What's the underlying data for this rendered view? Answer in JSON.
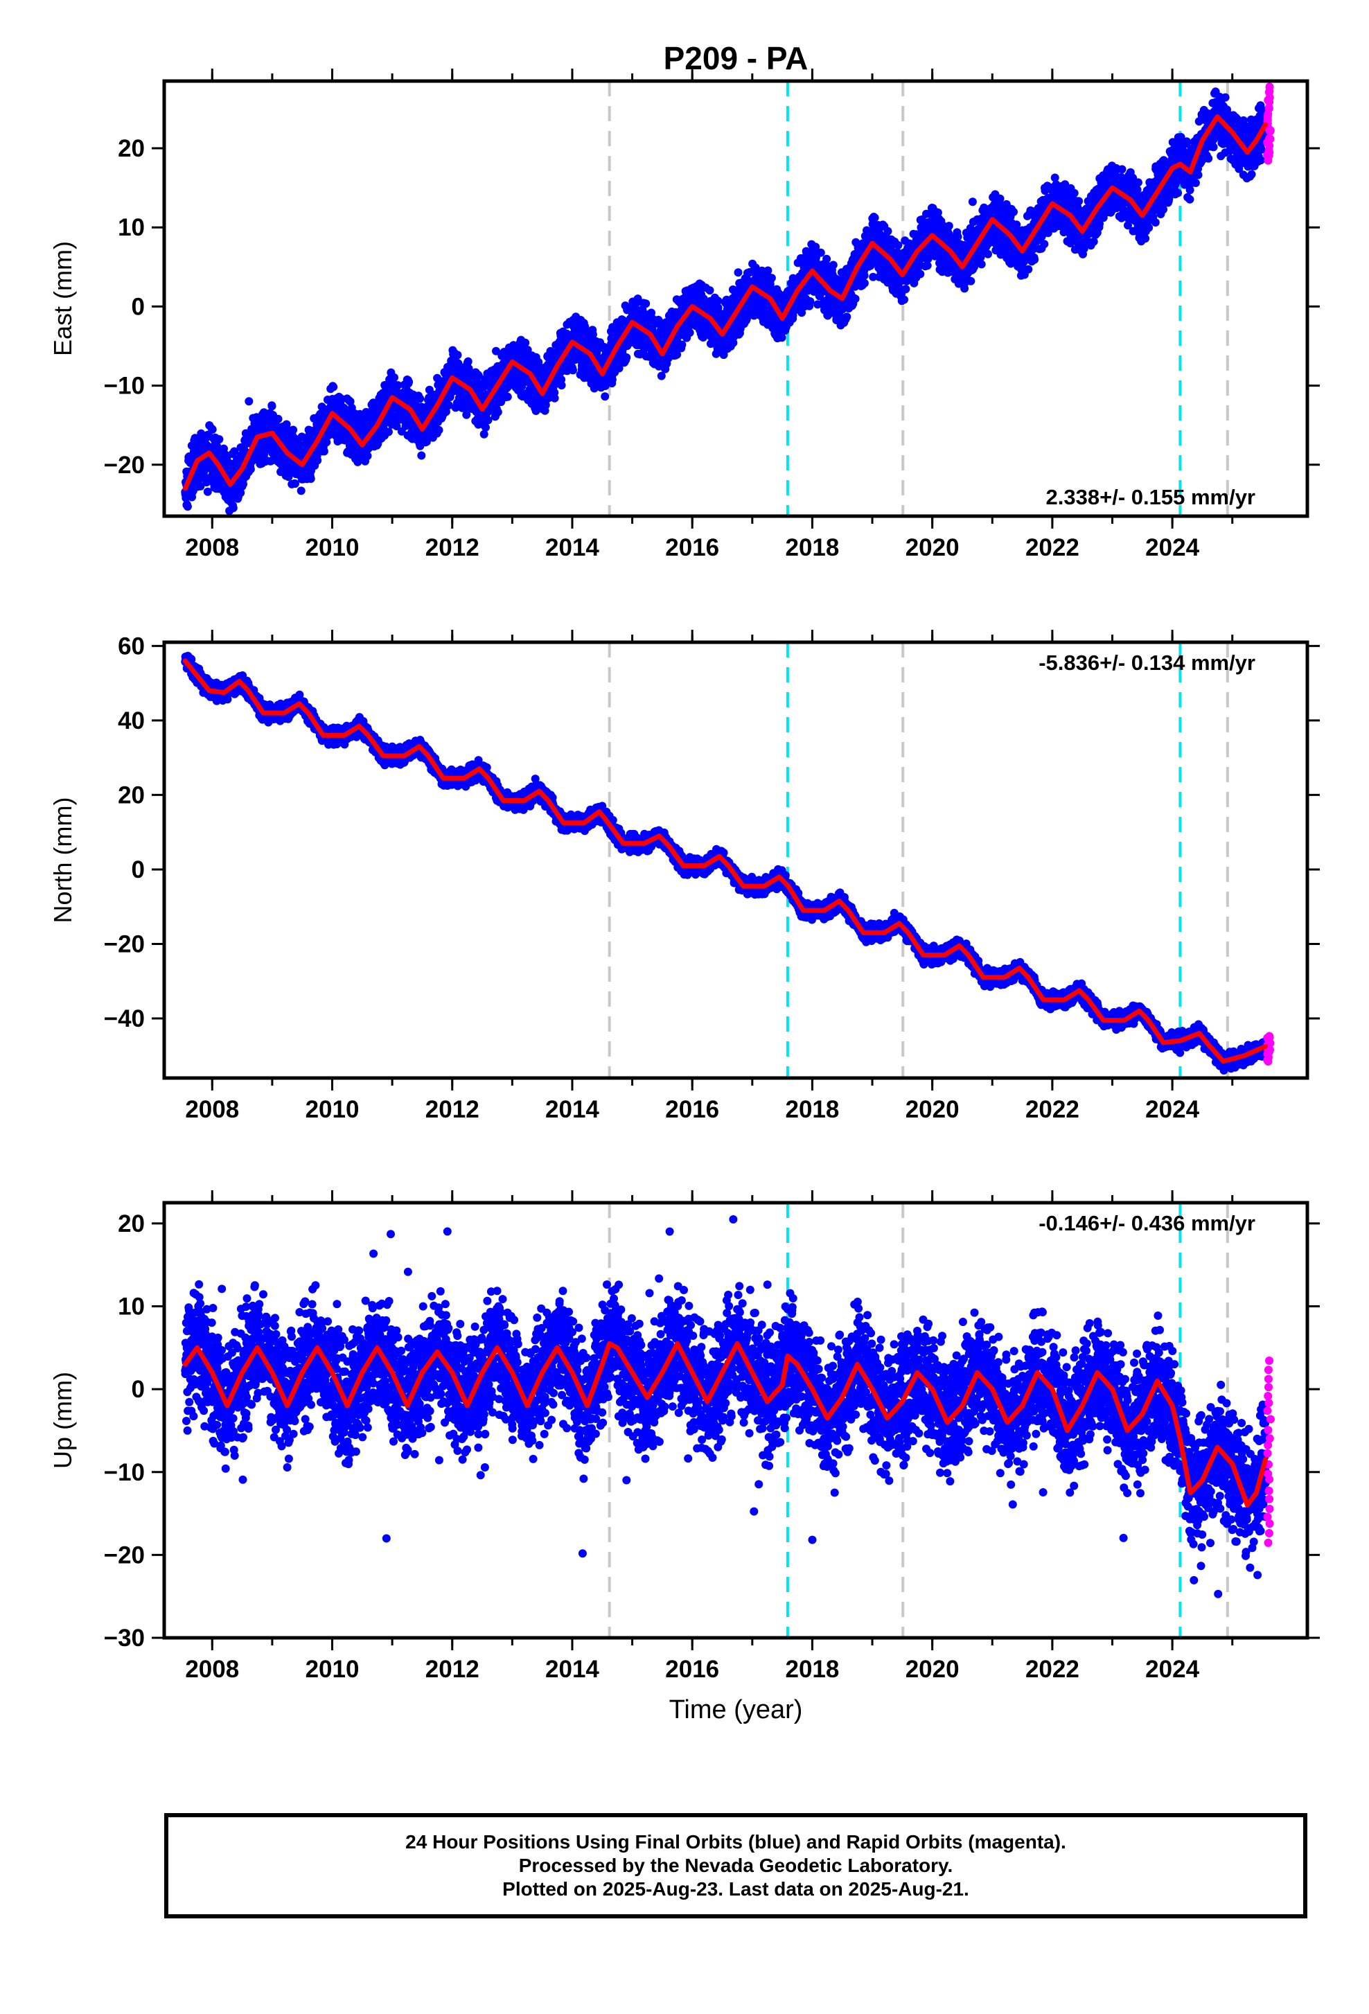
{
  "chart_data": {
    "type": "scatter",
    "title": "P209 - PA",
    "xlabel": "Time (year)",
    "xlim": [
      2007.2,
      2026.25
    ],
    "xticks": [
      2008,
      2010,
      2012,
      2014,
      2016,
      2018,
      2020,
      2022,
      2024
    ],
    "event_lines": [
      {
        "x": 2014.62,
        "color": "#c8c8c8"
      },
      {
        "x": 2017.59,
        "color": "#00e5ee"
      },
      {
        "x": 2019.51,
        "color": "#c8c8c8"
      },
      {
        "x": 2024.13,
        "color": "#00e5ee"
      },
      {
        "x": 2024.92,
        "color": "#c8c8c8"
      }
    ],
    "colors": {
      "final": "#0000ff",
      "rapid": "#ff00ff",
      "model": "#ff0000",
      "axes": "#000000"
    },
    "legend": {
      "final": "Final Orbits (blue)",
      "rapid": "Rapid Orbits (magenta)"
    },
    "panels": [
      {
        "name": "east",
        "ylabel": "East (mm)",
        "ylim": [
          -26.5,
          28.5
        ],
        "yticks": [
          -20,
          -10,
          0,
          10,
          20
        ],
        "ytick_labels": [
          "−20",
          "−10",
          "0",
          "10",
          "20"
        ],
        "rate_label": "2.338+/- 0.155 mm/yr",
        "rate_position": "bottom-right",
        "model": {
          "x": [
            2007.55,
            2007.75,
            2007.95,
            2008.1,
            2008.3,
            2008.5,
            2008.75,
            2009.0,
            2009.25,
            2009.5,
            2009.75,
            2010.0,
            2010.3,
            2010.5,
            2010.75,
            2011.0,
            2011.3,
            2011.5,
            2011.75,
            2012.0,
            2012.3,
            2012.5,
            2012.75,
            2013.0,
            2013.3,
            2013.5,
            2013.75,
            2014.0,
            2014.3,
            2014.5,
            2014.75,
            2015.0,
            2015.3,
            2015.5,
            2015.75,
            2016.0,
            2016.3,
            2016.5,
            2016.75,
            2017.0,
            2017.3,
            2017.5,
            2017.75,
            2018.0,
            2018.3,
            2018.5,
            2018.75,
            2019.0,
            2019.3,
            2019.5,
            2019.75,
            2020.0,
            2020.3,
            2020.5,
            2020.75,
            2021.0,
            2021.3,
            2021.5,
            2021.75,
            2022.0,
            2022.3,
            2022.5,
            2022.75,
            2023.0,
            2023.3,
            2023.5,
            2023.75,
            2024.0,
            2024.13,
            2024.3,
            2024.5,
            2024.75,
            2025.0,
            2025.25,
            2025.4,
            2025.55
          ],
          "y": [
            -23.0,
            -19.5,
            -18.5,
            -20.0,
            -22.5,
            -20.5,
            -16.5,
            -16.0,
            -18.5,
            -20.0,
            -17.0,
            -13.5,
            -15.5,
            -17.5,
            -15.0,
            -11.5,
            -13.0,
            -15.5,
            -12.5,
            -9.0,
            -10.5,
            -13.0,
            -10.0,
            -7.0,
            -8.5,
            -11.0,
            -7.5,
            -4.5,
            -6.0,
            -8.5,
            -5.0,
            -2.0,
            -3.5,
            -6.0,
            -2.5,
            0.0,
            -1.5,
            -3.5,
            -0.5,
            2.5,
            1.0,
            -1.5,
            2.0,
            4.5,
            2.0,
            1.0,
            5.0,
            8.0,
            6.0,
            4.0,
            7.0,
            9.0,
            7.0,
            5.0,
            8.0,
            11.0,
            9.0,
            7.0,
            10.0,
            13.0,
            11.5,
            9.5,
            12.5,
            15.0,
            13.5,
            11.5,
            14.5,
            17.5,
            18.0,
            17.0,
            21.0,
            24.0,
            22.0,
            19.5,
            21.0,
            23.0
          ]
        },
        "final_scatter": {
          "seed": 11,
          "noise_sd": 1.6,
          "noise_max": 3.5,
          "outlier_rate": 0.004,
          "outlier_range": 4
        },
        "rapid": {
          "x_range": [
            2025.58,
            2025.64
          ],
          "y_range": [
            18.5,
            27.8
          ],
          "count": 26
        }
      },
      {
        "name": "north",
        "ylabel": "North (mm)",
        "ylim": [
          -56,
          61
        ],
        "yticks": [
          -40,
          -20,
          0,
          20,
          40,
          60
        ],
        "ytick_labels": [
          "−40",
          "−20",
          "0",
          "20",
          "40",
          "60"
        ],
        "rate_label": "-5.836+/- 0.134 mm/yr",
        "rate_position": "top-right",
        "model": {
          "x": [
            2007.55,
            2007.75,
            2007.95,
            2008.2,
            2008.45,
            2008.6,
            2008.85,
            2009.2,
            2009.45,
            2009.6,
            2009.85,
            2010.2,
            2010.45,
            2010.6,
            2010.85,
            2011.2,
            2011.45,
            2011.6,
            2011.85,
            2012.2,
            2012.45,
            2012.6,
            2012.85,
            2013.2,
            2013.45,
            2013.6,
            2013.85,
            2014.2,
            2014.45,
            2014.6,
            2014.85,
            2015.2,
            2015.45,
            2015.6,
            2015.85,
            2016.2,
            2016.45,
            2016.6,
            2016.85,
            2017.2,
            2017.45,
            2017.6,
            2017.85,
            2018.2,
            2018.45,
            2018.6,
            2018.85,
            2019.2,
            2019.45,
            2019.6,
            2019.85,
            2020.2,
            2020.45,
            2020.6,
            2020.85,
            2021.2,
            2021.45,
            2021.6,
            2021.85,
            2022.2,
            2022.45,
            2022.6,
            2022.85,
            2023.2,
            2023.45,
            2023.6,
            2023.85,
            2024.13,
            2024.45,
            2024.6,
            2024.85,
            2025.2,
            2025.55
          ],
          "y": [
            56.0,
            52.0,
            48.0,
            47.5,
            50.5,
            48.0,
            42.0,
            42.0,
            44.5,
            42.0,
            36.0,
            36.0,
            38.5,
            36.0,
            30.5,
            30.5,
            33.0,
            30.5,
            24.5,
            24.5,
            27.0,
            24.5,
            18.5,
            18.5,
            21.0,
            18.5,
            12.5,
            12.5,
            15.5,
            12.5,
            7.0,
            7.0,
            9.0,
            6.5,
            1.0,
            1.0,
            3.5,
            1.0,
            -4.5,
            -4.5,
            -2.0,
            -4.5,
            -11.0,
            -11.0,
            -8.5,
            -11.0,
            -17.0,
            -17.0,
            -14.5,
            -17.0,
            -23.0,
            -23.0,
            -20.5,
            -23.0,
            -29.0,
            -29.0,
            -26.5,
            -29.0,
            -35.0,
            -35.0,
            -32.5,
            -35.0,
            -40.5,
            -40.5,
            -38.0,
            -40.5,
            -46.5,
            -46.0,
            -44.0,
            -47.0,
            -51.5,
            -50.0,
            -47.5
          ]
        },
        "final_scatter": {
          "seed": 22,
          "noise_sd": 1.0,
          "noise_max": 2.5,
          "outlier_rate": 0.002,
          "outlier_range": 3
        },
        "rapid": {
          "x_range": [
            2025.58,
            2025.64
          ],
          "y_range": [
            -51.5,
            -44.5
          ],
          "count": 16
        }
      },
      {
        "name": "up",
        "ylabel": "Up (mm)",
        "ylim": [
          -30,
          22.5
        ],
        "yticks": [
          -30,
          -20,
          -10,
          0,
          10,
          20
        ],
        "ytick_labels": [
          "−30",
          "−20",
          "−10",
          "0",
          "10",
          "20"
        ],
        "rate_label": "-0.146+/- 0.436 mm/yr",
        "rate_position": "top-right",
        "model": {
          "x": [
            2007.55,
            2007.75,
            2008.0,
            2008.25,
            2008.5,
            2008.75,
            2009.0,
            2009.25,
            2009.5,
            2009.75,
            2010.0,
            2010.25,
            2010.5,
            2010.75,
            2011.0,
            2011.25,
            2011.5,
            2011.75,
            2012.0,
            2012.25,
            2012.5,
            2012.75,
            2013.0,
            2013.25,
            2013.5,
            2013.75,
            2014.0,
            2014.25,
            2014.5,
            2014.62,
            2014.75,
            2015.0,
            2015.25,
            2015.5,
            2015.75,
            2016.0,
            2016.25,
            2016.5,
            2016.75,
            2017.0,
            2017.25,
            2017.5,
            2017.59,
            2017.75,
            2018.0,
            2018.25,
            2018.5,
            2018.75,
            2019.0,
            2019.25,
            2019.5,
            2019.75,
            2020.0,
            2020.25,
            2020.5,
            2020.75,
            2021.0,
            2021.25,
            2021.5,
            2021.75,
            2022.0,
            2022.25,
            2022.5,
            2022.75,
            2023.0,
            2023.25,
            2023.5,
            2023.75,
            2024.0,
            2024.13,
            2024.3,
            2024.5,
            2024.75,
            2025.0,
            2025.25,
            2025.4,
            2025.55
          ],
          "y": [
            3.0,
            5.0,
            2.0,
            -2.0,
            2.0,
            5.0,
            2.0,
            -2.0,
            2.0,
            5.0,
            2.0,
            -2.0,
            2.0,
            5.0,
            2.0,
            -2.0,
            2.0,
            4.5,
            2.0,
            -2.0,
            2.0,
            5.0,
            2.0,
            -2.0,
            2.0,
            5.0,
            2.0,
            -2.0,
            3.0,
            5.5,
            5.0,
            2.0,
            -1.0,
            2.0,
            5.5,
            2.0,
            -1.5,
            2.0,
            5.5,
            2.0,
            -1.5,
            0.5,
            4.0,
            3.0,
            0.0,
            -3.5,
            -1.0,
            3.0,
            0.0,
            -3.5,
            -1.5,
            2.0,
            0.0,
            -4.0,
            -2.0,
            2.0,
            0.0,
            -4.0,
            -2.0,
            2.0,
            0.0,
            -5.0,
            -2.0,
            2.0,
            0.0,
            -5.0,
            -3.0,
            1.0,
            -2.0,
            -6.0,
            -12.5,
            -11.0,
            -7.0,
            -9.0,
            -14.0,
            -12.5,
            -8.5
          ]
        },
        "final_scatter": {
          "seed": 33,
          "noise_sd": 3.4,
          "noise_max": 8.0,
          "outlier_rate": 0.012,
          "outlier_range": 16
        },
        "rapid": {
          "x_range": [
            2025.58,
            2025.64
          ],
          "y_range": [
            -18.5,
            3.5
          ],
          "count": 22
        }
      }
    ]
  },
  "footer": {
    "line1": "24 Hour Positions Using Final Orbits (blue) and Rapid Orbits (magenta).",
    "line2": "Processed by the Nevada Geodetic Laboratory.",
    "line3": "Plotted on 2025-Aug-23. Last data on 2025-Aug-21."
  }
}
